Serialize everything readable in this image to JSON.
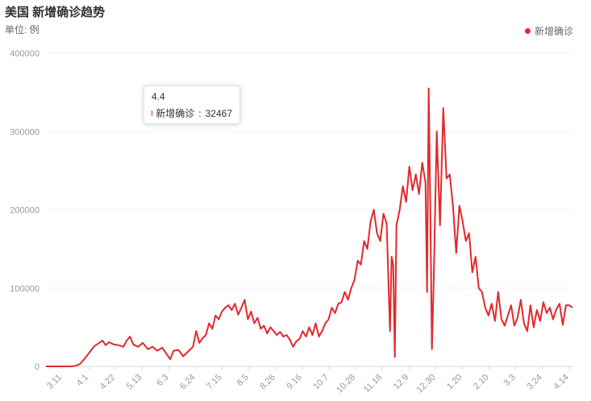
{
  "title": "美国 新增确诊趋势",
  "unit_label": "单位: 例",
  "legend": {
    "label": "新增确诊"
  },
  "tooltip": {
    "title": "4.4",
    "series_name": "新增确诊",
    "value": "32467",
    "separator": ": "
  },
  "colors": {
    "series": "#e3282b",
    "axis_text": "#999999",
    "grid": "#f2f2f2",
    "title": "#333333"
  },
  "chart_data": {
    "type": "line",
    "title": "美国 新增确诊趋势",
    "ylabel": "单位: 例",
    "ylim": [
      0,
      400000
    ],
    "y_ticks": [
      "0",
      "100000",
      "200000",
      "300000",
      "400000"
    ],
    "x_ticks": [
      "3.11",
      "4.1",
      "4.22",
      "5.13",
      "6.3",
      "6.24",
      "7.15",
      "8.5",
      "8.26",
      "9.16",
      "10.7",
      "10.28",
      "11.18",
      "12.9",
      "12.30",
      "1.20",
      "2.10",
      "3.3",
      "3.24",
      "4.14"
    ],
    "grid": true,
    "legend_position": "top-right",
    "series": [
      {
        "name": "新增确诊",
        "points": [
          [
            0,
            0
          ],
          [
            5,
            0
          ],
          [
            10,
            0
          ],
          [
            15,
            0
          ],
          [
            18,
            500
          ],
          [
            21,
            3000
          ],
          [
            24,
            10000
          ],
          [
            27,
            18000
          ],
          [
            30,
            26000
          ],
          [
            33,
            30000
          ],
          [
            35,
            33000
          ],
          [
            37,
            27000
          ],
          [
            39,
            31000
          ],
          [
            42,
            28000
          ],
          [
            45,
            27000
          ],
          [
            48,
            25000
          ],
          [
            50,
            33000
          ],
          [
            52,
            38000
          ],
          [
            54,
            28000
          ],
          [
            57,
            25000
          ],
          [
            60,
            30000
          ],
          [
            63,
            22000
          ],
          [
            66,
            25000
          ],
          [
            69,
            20000
          ],
          [
            72,
            24000
          ],
          [
            75,
            15000
          ],
          [
            77,
            9000
          ],
          [
            79,
            20000
          ],
          [
            82,
            21000
          ],
          [
            85,
            13000
          ],
          [
            88,
            19000
          ],
          [
            91,
            25000
          ],
          [
            93,
            45000
          ],
          [
            95,
            30000
          ],
          [
            97,
            36000
          ],
          [
            99,
            40000
          ],
          [
            101,
            55000
          ],
          [
            103,
            48000
          ],
          [
            105,
            65000
          ],
          [
            107,
            60000
          ],
          [
            109,
            70000
          ],
          [
            111,
            75000
          ],
          [
            113,
            78000
          ],
          [
            115,
            72000
          ],
          [
            117,
            80000
          ],
          [
            119,
            66000
          ],
          [
            121,
            75000
          ],
          [
            123,
            85000
          ],
          [
            125,
            60000
          ],
          [
            127,
            70000
          ],
          [
            129,
            55000
          ],
          [
            131,
            62000
          ],
          [
            133,
            48000
          ],
          [
            135,
            52000
          ],
          [
            137,
            42000
          ],
          [
            139,
            50000
          ],
          [
            141,
            45000
          ],
          [
            143,
            40000
          ],
          [
            145,
            44000
          ],
          [
            147,
            38000
          ],
          [
            149,
            40000
          ],
          [
            151,
            34000
          ],
          [
            153,
            25000
          ],
          [
            155,
            32000
          ],
          [
            157,
            35000
          ],
          [
            159,
            45000
          ],
          [
            161,
            38000
          ],
          [
            163,
            50000
          ],
          [
            165,
            40000
          ],
          [
            167,
            55000
          ],
          [
            169,
            38000
          ],
          [
            171,
            45000
          ],
          [
            173,
            55000
          ],
          [
            175,
            60000
          ],
          [
            177,
            75000
          ],
          [
            179,
            68000
          ],
          [
            181,
            80000
          ],
          [
            183,
            82000
          ],
          [
            185,
            95000
          ],
          [
            187,
            85000
          ],
          [
            189,
            100000
          ],
          [
            191,
            110000
          ],
          [
            193,
            135000
          ],
          [
            195,
            130000
          ],
          [
            197,
            160000
          ],
          [
            199,
            150000
          ],
          [
            201,
            185000
          ],
          [
            203,
            200000
          ],
          [
            205,
            170000
          ],
          [
            207,
            160000
          ],
          [
            209,
            195000
          ],
          [
            211,
            182000
          ],
          [
            212,
            110000
          ],
          [
            213,
            45000
          ],
          [
            214,
            140000
          ],
          [
            215,
            130000
          ],
          [
            216,
            12000
          ],
          [
            217,
            180000
          ],
          [
            219,
            200000
          ],
          [
            221,
            230000
          ],
          [
            223,
            210000
          ],
          [
            225,
            255000
          ],
          [
            227,
            225000
          ],
          [
            229,
            245000
          ],
          [
            231,
            220000
          ],
          [
            233,
            260000
          ],
          [
            235,
            235000
          ],
          [
            236,
            95000
          ],
          [
            237,
            355000
          ],
          [
            238,
            200000
          ],
          [
            239,
            22000
          ],
          [
            240,
            100000
          ],
          [
            242,
            300000
          ],
          [
            244,
            180000
          ],
          [
            246,
            330000
          ],
          [
            248,
            240000
          ],
          [
            250,
            245000
          ],
          [
            252,
            205000
          ],
          [
            254,
            145000
          ],
          [
            256,
            205000
          ],
          [
            258,
            185000
          ],
          [
            260,
            160000
          ],
          [
            262,
            170000
          ],
          [
            264,
            120000
          ],
          [
            266,
            140000
          ],
          [
            268,
            100000
          ],
          [
            270,
            95000
          ],
          [
            272,
            75000
          ],
          [
            274,
            65000
          ],
          [
            276,
            80000
          ],
          [
            278,
            58000
          ],
          [
            280,
            95000
          ],
          [
            282,
            60000
          ],
          [
            284,
            52000
          ],
          [
            286,
            65000
          ],
          [
            288,
            78000
          ],
          [
            290,
            52000
          ],
          [
            292,
            62000
          ],
          [
            294,
            85000
          ],
          [
            296,
            55000
          ],
          [
            298,
            45000
          ],
          [
            300,
            78000
          ],
          [
            302,
            50000
          ],
          [
            304,
            72000
          ],
          [
            306,
            58000
          ],
          [
            308,
            82000
          ],
          [
            310,
            68000
          ],
          [
            312,
            75000
          ],
          [
            314,
            60000
          ],
          [
            316,
            73000
          ],
          [
            318,
            80000
          ],
          [
            320,
            53000
          ],
          [
            322,
            78000
          ],
          [
            324,
            78000
          ],
          [
            326,
            75000
          ]
        ]
      }
    ],
    "highlight": {
      "x_label": "4.4",
      "value": 32467
    }
  }
}
